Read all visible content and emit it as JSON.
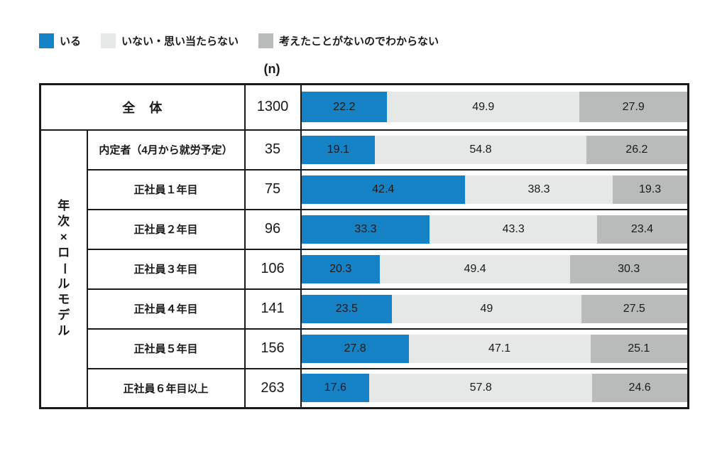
{
  "legend": {
    "items": [
      {
        "label": "いる",
        "color": "#1482c4",
        "swatch": "blue-square"
      },
      {
        "label": "いない・思い当たらない",
        "color": "#e6e7e7",
        "swatch": "light-gray-square"
      },
      {
        "label": "考えたことがないのでわからない",
        "color": "#b9baba",
        "swatch": "gray-square"
      }
    ]
  },
  "n_header": "(n)",
  "group_label": "年次×ロールモデル",
  "colors": {
    "border": "#1a1a1a",
    "background": "#ffffff"
  },
  "chart_data": {
    "type": "bar",
    "variant": "horizontal-stacked-100",
    "value_unit": "%",
    "xlim": [
      0,
      100
    ],
    "series": [
      "いる",
      "いない・思い当たらない",
      "考えたことがないのでわからない"
    ],
    "series_colors": [
      "#1482c4",
      "#e6e7e7",
      "#b9baba"
    ],
    "rows": [
      {
        "category": "全　体",
        "group": null,
        "n": 1300,
        "values": [
          22.2,
          49.9,
          27.9
        ]
      },
      {
        "category": "内定者（4月から就労予定）",
        "group": "年次×ロールモデル",
        "n": 35,
        "values": [
          19.1,
          54.8,
          26.2
        ]
      },
      {
        "category": "正社員１年目",
        "group": "年次×ロールモデル",
        "n": 75,
        "values": [
          42.4,
          38.3,
          19.3
        ]
      },
      {
        "category": "正社員２年目",
        "group": "年次×ロールモデル",
        "n": 96,
        "values": [
          33.3,
          43.3,
          23.4
        ]
      },
      {
        "category": "正社員３年目",
        "group": "年次×ロールモデル",
        "n": 106,
        "values": [
          20.3,
          49.4,
          30.3
        ]
      },
      {
        "category": "正社員４年目",
        "group": "年次×ロールモデル",
        "n": 141,
        "values": [
          23.5,
          49,
          27.5
        ]
      },
      {
        "category": "正社員５年目",
        "group": "年次×ロールモデル",
        "n": 156,
        "values": [
          27.8,
          47.1,
          25.1
        ]
      },
      {
        "category": "正社員６年目以上",
        "group": "年次×ロールモデル",
        "n": 263,
        "values": [
          17.6,
          57.8,
          24.6
        ]
      }
    ]
  }
}
